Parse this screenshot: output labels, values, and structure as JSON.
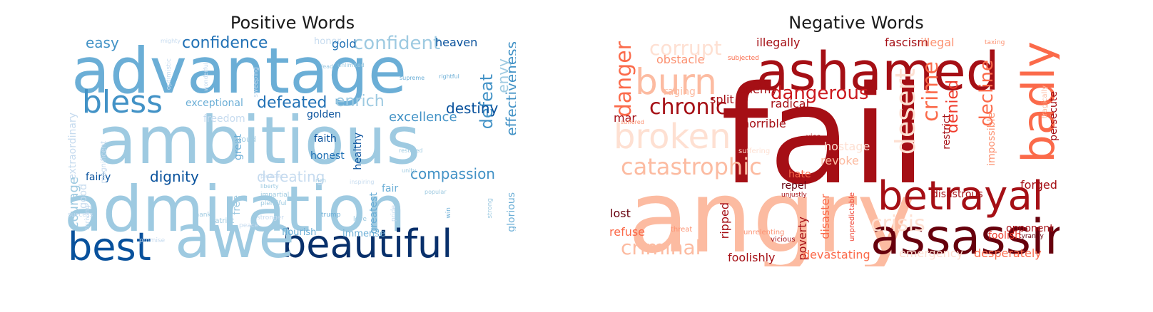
{
  "panels": [
    {
      "id": "positive",
      "title": "Positive Words",
      "palette": [
        "#08306b",
        "#08519c",
        "#2171b5",
        "#4292c6",
        "#6baed6",
        "#9ecae1",
        "#c6dbef",
        "#deebf7"
      ],
      "words": [
        {
          "text": "advantage",
          "c": 4
        },
        {
          "text": "ambitious",
          "c": 5
        },
        {
          "text": "admiration",
          "c": 5
        },
        {
          "text": "beautiful",
          "c": 0
        },
        {
          "text": "best",
          "c": 1
        },
        {
          "text": "awe",
          "c": 5
        },
        {
          "text": "bless",
          "c": 3
        },
        {
          "text": "confident",
          "c": 5
        },
        {
          "text": "confidence",
          "c": 2
        },
        {
          "text": "easy",
          "c": 3
        },
        {
          "text": "extraordinary",
          "c": 6
        },
        {
          "text": "honor",
          "c": 6
        },
        {
          "text": "gold",
          "c": 2
        },
        {
          "text": "heaven",
          "c": 1
        },
        {
          "text": "envy",
          "c": 5
        },
        {
          "text": "defeat",
          "c": 3
        },
        {
          "text": "effectiveness",
          "c": 3
        },
        {
          "text": "defeated",
          "c": 2
        },
        {
          "text": "enrich",
          "c": 5
        },
        {
          "text": "destiny",
          "c": 1
        },
        {
          "text": "excellence",
          "c": 3
        },
        {
          "text": "exceptional",
          "c": 4
        },
        {
          "text": "freedom",
          "c": 6
        },
        {
          "text": "golden",
          "c": 1
        },
        {
          "text": "courage",
          "c": 5
        },
        {
          "text": "faith",
          "c": 1
        },
        {
          "text": "honest",
          "c": 2
        },
        {
          "text": "healthy",
          "c": 1
        },
        {
          "text": "great",
          "c": 4
        },
        {
          "text": "proud",
          "c": 5
        },
        {
          "text": "good",
          "c": 6
        },
        {
          "text": "dignity",
          "c": 1
        },
        {
          "text": "defeating",
          "c": 6
        },
        {
          "text": "compassion",
          "c": 3
        },
        {
          "text": "fairly",
          "c": 1
        },
        {
          "text": "free",
          "c": 5
        },
        {
          "text": "fair",
          "c": 4
        },
        {
          "text": "greatest",
          "c": 4
        },
        {
          "text": "glorious",
          "c": 4
        },
        {
          "text": "flourish",
          "c": 4
        },
        {
          "text": "immense",
          "c": 4
        },
        {
          "text": "mighty",
          "c": 6
        },
        {
          "text": "wonderful",
          "c": 6
        },
        {
          "text": "rightful",
          "c": 4
        },
        {
          "text": "supreme",
          "c": 4
        },
        {
          "text": "lead",
          "c": 5
        },
        {
          "text": "unlimited",
          "c": 5
        },
        {
          "text": "optimistic",
          "c": 6
        },
        {
          "text": "sweeping",
          "c": 6
        },
        {
          "text": "rich",
          "c": 5
        },
        {
          "text": "liberty",
          "c": 5
        },
        {
          "text": "pleased",
          "c": 6
        },
        {
          "text": "restored",
          "c": 5
        },
        {
          "text": "popular",
          "c": 5
        },
        {
          "text": "inspiring",
          "c": 6
        },
        {
          "text": "unity",
          "c": 5
        },
        {
          "text": "patriot",
          "c": 5
        },
        {
          "text": "impartial",
          "c": 5
        },
        {
          "text": "plentiful",
          "c": 5
        },
        {
          "text": "thank",
          "c": 5
        },
        {
          "text": "trump",
          "c": 4
        },
        {
          "text": "love",
          "c": 5
        },
        {
          "text": "pride",
          "c": 6
        },
        {
          "text": "win",
          "c": 4
        },
        {
          "text": "strong",
          "c": 5
        },
        {
          "text": "success",
          "c": 6
        },
        {
          "text": "thriving",
          "c": 6
        },
        {
          "text": "stronger",
          "c": 6
        },
        {
          "text": "promise",
          "c": 6
        },
        {
          "text": "peace",
          "c": 6
        },
        {
          "text": "magnificent",
          "c": 6
        }
      ]
    },
    {
      "id": "negative",
      "title": "Negative Words",
      "palette": [
        "#67000d",
        "#a50f15",
        "#cb181d",
        "#ef3b2c",
        "#fb6a4a",
        "#fc9272",
        "#fcbba1",
        "#fee0d2"
      ],
      "words": [
        {
          "text": "fail",
          "c": 1
        },
        {
          "text": "angry",
          "c": 6
        },
        {
          "text": "ashamed",
          "c": 1
        },
        {
          "text": "badly",
          "c": 4
        },
        {
          "text": "assassin",
          "c": 0
        },
        {
          "text": "betrayal",
          "c": 1
        },
        {
          "text": "broken",
          "c": 7
        },
        {
          "text": "burn",
          "c": 6
        },
        {
          "text": "catastrophic",
          "c": 6
        },
        {
          "text": "criminal",
          "c": 6
        },
        {
          "text": "corrupt",
          "c": 7
        },
        {
          "text": "danger",
          "c": 4
        },
        {
          "text": "chronic",
          "c": 1
        },
        {
          "text": "dangerous",
          "c": 2
        },
        {
          "text": "crime",
          "c": 4
        },
        {
          "text": "decline",
          "c": 4
        },
        {
          "text": "denied",
          "c": 3
        },
        {
          "text": "desert",
          "c": 7
        },
        {
          "text": "crisis",
          "c": 7
        },
        {
          "text": "illegally",
          "c": 1
        },
        {
          "text": "fascism",
          "c": 1
        },
        {
          "text": "illegal",
          "c": 5
        },
        {
          "text": "taxing",
          "c": 5
        },
        {
          "text": "obstacle",
          "c": 5
        },
        {
          "text": "subjected",
          "c": 4
        },
        {
          "text": "enemy",
          "c": 1
        },
        {
          "text": "raging",
          "c": 6
        },
        {
          "text": "split",
          "c": 1
        },
        {
          "text": "radical",
          "c": 1
        },
        {
          "text": "mar",
          "c": 1
        },
        {
          "text": "suffered",
          "c": 5
        },
        {
          "text": "horrible",
          "c": 1
        },
        {
          "text": "vice",
          "c": 1
        },
        {
          "text": "hostage",
          "c": 7
        },
        {
          "text": "revoke",
          "c": 6
        },
        {
          "text": "suffering",
          "c": 7
        },
        {
          "text": "hate",
          "c": 4
        },
        {
          "text": "repel",
          "c": 0
        },
        {
          "text": "unjustly",
          "c": 1
        },
        {
          "text": "restrict",
          "c": 1
        },
        {
          "text": "impossible",
          "c": 5
        },
        {
          "text": "persecute",
          "c": 1
        },
        {
          "text": "tragically",
          "c": 6
        },
        {
          "text": "forged",
          "c": 1
        },
        {
          "text": "disastrous",
          "c": 1
        },
        {
          "text": "lost",
          "c": 0
        },
        {
          "text": "ripped",
          "c": 1
        },
        {
          "text": "poverty",
          "c": 1
        },
        {
          "text": "disaster",
          "c": 4
        },
        {
          "text": "unpredictable",
          "c": 3
        },
        {
          "text": "opponent",
          "c": 1
        },
        {
          "text": "tyranny",
          "c": 0
        },
        {
          "text": "foolish",
          "c": 3
        },
        {
          "text": "refuse",
          "c": 4
        },
        {
          "text": "threat",
          "c": 5
        },
        {
          "text": "unrelenting",
          "c": 5
        },
        {
          "text": "vicious",
          "c": 1
        },
        {
          "text": "foolishly",
          "c": 1
        },
        {
          "text": "devastating",
          "c": 4
        },
        {
          "text": "emergency",
          "c": 7
        },
        {
          "text": "desperately",
          "c": 4
        }
      ]
    }
  ]
}
